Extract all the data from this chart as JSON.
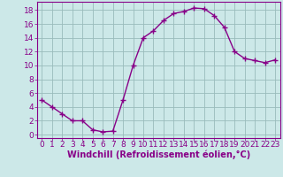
{
  "x": [
    0,
    1,
    2,
    3,
    4,
    5,
    6,
    7,
    8,
    9,
    10,
    11,
    12,
    13,
    14,
    15,
    16,
    17,
    18,
    19,
    20,
    21,
    22,
    23
  ],
  "y": [
    5,
    4,
    3,
    2,
    2,
    0.7,
    0.4,
    0.5,
    5,
    10,
    14,
    15,
    16.5,
    17.5,
    17.8,
    18.3,
    18.2,
    17.2,
    15.5,
    12,
    11,
    10.7,
    10.4,
    10.8
  ],
  "line_color": "#880088",
  "marker": "+",
  "marker_size": 4,
  "bg_color": "#cce8e8",
  "grid_color": "#99bbbb",
  "xlabel": "Windchill (Refroidissement éolien,°C)",
  "xlim": [
    -0.5,
    23.5
  ],
  "ylim": [
    -0.5,
    19.2
  ],
  "xticks": [
    0,
    1,
    2,
    3,
    4,
    5,
    6,
    7,
    8,
    9,
    10,
    11,
    12,
    13,
    14,
    15,
    16,
    17,
    18,
    19,
    20,
    21,
    22,
    23
  ],
  "yticks": [
    0,
    2,
    4,
    6,
    8,
    10,
    12,
    14,
    16,
    18
  ],
  "tick_color": "#880088",
  "label_color": "#880088",
  "font_size": 6.5,
  "xlabel_fontsize": 7,
  "linewidth": 1.0,
  "marker_linewidth": 1.0
}
